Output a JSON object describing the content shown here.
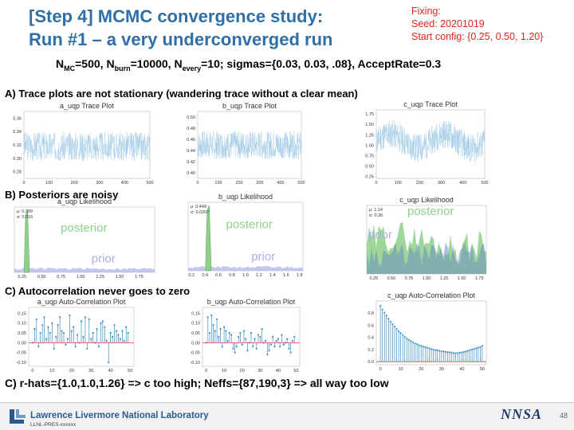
{
  "slide": {
    "title_line1": "[Step 4] MCMC convergence study:",
    "title_line2": "Run #1 – a very underconverged run",
    "fixing": [
      "Fixing:",
      "Seed: 20201019",
      "Start config: {0.25, 0.50, 1.20}"
    ],
    "params": {
      "nmc_sym": "N",
      "nmc_sub": "MC",
      "nmc_val": "=500, ",
      "nburn_sym": "N",
      "nburn_sub": "burn",
      "nburn_val": "=10000, ",
      "nevery_sym": "N",
      "nevery_sub": "every",
      "nevery_val": "=10; sigmas={0.03, 0.03, .08}, AcceptRate=0.3"
    },
    "section_a": "A) Trace plots are not stationary (wandering trace without a clear mean)",
    "section_b": "B) Posteriors are noisy",
    "section_c": "C) Autocorrelation never goes to zero",
    "conclusion": "C) r-hats={1.0,1.0,1.26} => c too high; Neffs={87,190,3} => all way too low",
    "footer": {
      "lab": "Lawrence Livermore National Laboratory",
      "code": "LLNL-PRES-xxxxxx",
      "page": "48",
      "agency": "NNSA"
    }
  },
  "colors": {
    "title": "#2e6fa8",
    "fixing": "#e8231c",
    "trace": "#a9cfe8",
    "posterior": "#8ed08a",
    "prior": "#aaaee8",
    "acf": "#3a8fc6",
    "zero_line": "#e0433c"
  },
  "chart_data": [
    {
      "type": "line",
      "title": "a_uqp Trace Plot",
      "xlim": [
        0,
        500
      ],
      "ylim": [
        0.27,
        0.37
      ],
      "xticks": [
        "0",
        "100",
        "200",
        "300",
        "400",
        "500"
      ],
      "yticks": [
        "0.28",
        "0.30",
        "0.32",
        "0.34",
        "0.36"
      ],
      "seed": 3,
      "base": 0.318,
      "amp": 0.022
    },
    {
      "type": "line",
      "title": "b_uqp Trace Plot",
      "xlim": [
        0,
        500
      ],
      "ylim": [
        0.39,
        0.51
      ],
      "xticks": [
        "0",
        "100",
        "200",
        "300",
        "400",
        "500"
      ],
      "yticks": [
        "0.40",
        "0.42",
        "0.44",
        "0.46",
        "0.48",
        "0.50"
      ],
      "seed": 7,
      "base": 0.45,
      "amp": 0.025
    },
    {
      "type": "line",
      "title": "c_uqp Trace Plot",
      "xlim": [
        0,
        500
      ],
      "ylim": [
        0.2,
        1.85
      ],
      "xticks": [
        "0",
        "100",
        "200",
        "300",
        "400",
        "500"
      ],
      "yticks": [
        "0.25",
        "0.50",
        "0.75",
        "1.00",
        "1.25",
        "1.50",
        "1.75"
      ],
      "seed": 11,
      "base": 1.1,
      "amp": 0.35
    },
    {
      "type": "area",
      "title": "a_uqp Likelihood",
      "mu": "μ: 0.309",
      "sigma": "σ: 0.016",
      "xticks": [
        "0.25",
        "0.50",
        "0.75",
        "1.00",
        "1.25",
        "1.50",
        "1.75"
      ],
      "xlim": [
        0.15,
        1.95
      ],
      "peak_x": 0.309,
      "peak_w": 0.016,
      "posterior_label": "posterior",
      "prior_label": "prior"
    },
    {
      "type": "area",
      "title": "b_uqp Likelihood",
      "mu": "μ: 0.449",
      "sigma": "σ: 0.0207",
      "xticks": [
        "0.2",
        "0.4",
        "0.6",
        "0.8",
        "1.0",
        "1.2",
        "1.4",
        "1.6",
        "1.8"
      ],
      "xlim": [
        0.15,
        1.85
      ],
      "peak_x": 0.449,
      "peak_w": 0.02,
      "posterior_label": "posterior",
      "prior_label": "prior"
    },
    {
      "type": "area",
      "title": "c_uqp Likelihood",
      "mu": "μ: 1.14",
      "sigma": "σ: 0.36",
      "xticks": [
        "0.25",
        "0.50",
        "0.75",
        "1.00",
        "1.25",
        "1.50",
        "1.75"
      ],
      "xlim": [
        0.15,
        1.85
      ],
      "posterior_label": "posterior",
      "prior_label": "prior"
    },
    {
      "type": "bar",
      "title": "a_uqp Auto-Correlation Plot",
      "xlim": [
        -2,
        52
      ],
      "ylim": [
        -0.12,
        0.18
      ],
      "xticks": [
        "0",
        "10",
        "20",
        "30",
        "40",
        "50"
      ],
      "yticks": [
        "-0.10",
        "-0.05",
        "0.00",
        "0.05",
        "0.10",
        "0.15"
      ],
      "values": [
        0.0,
        0.07,
        0.12,
        -0.02,
        0.05,
        0.09,
        0.13,
        0.02,
        0.08,
        0.05,
        0.1,
        -0.03,
        0.03,
        0.09,
        0.13,
        0.06,
        0.05,
        -0.01,
        0.02,
        0.14,
        0.06,
        0.08,
        -0.02,
        0.04,
        0.0,
        0.11,
        0.03,
        0.13,
        -0.03,
        0.12,
        0.02,
        0.05,
        0.0,
        0.07,
        -0.02,
        0.1,
        0.11,
        0.08,
        0.01,
        -0.1,
        0.05,
        0.03,
        0.09,
        0.06,
        0.04,
        0.02,
        0.06,
        0.01,
        0.08,
        0.05
      ]
    },
    {
      "type": "bar",
      "title": "b_uqp Auto-Correlation Plot",
      "xlim": [
        -2,
        52
      ],
      "ylim": [
        -0.12,
        0.18
      ],
      "xticks": [
        "0",
        "10",
        "20",
        "30",
        "40",
        "50"
      ],
      "yticks": [
        "-0.10",
        "-0.05",
        "0.00",
        "0.05",
        "0.10",
        "0.15"
      ],
      "values": [
        0.0,
        0.13,
        0.05,
        0.14,
        0.09,
        0.06,
        0.12,
        0.03,
        0.07,
        -0.02,
        0.08,
        0.06,
        0.01,
        0.05,
        0.04,
        -0.03,
        -0.05,
        -0.02,
        0.03,
        0.05,
        -0.01,
        0.06,
        0.02,
        -0.04,
        0.0,
        0.05,
        -0.02,
        0.02,
        -0.03,
        0.04,
        0.03,
        0.07,
        0.0,
        0.01,
        -0.06,
        -0.04,
        -0.01,
        0.03,
        -0.02,
        0.01,
        0.02,
        -0.02,
        0.04,
        -0.01,
        0.0,
        0.02,
        -0.03,
        -0.05,
        0.01,
        0.03
      ]
    },
    {
      "type": "bar",
      "title": "c_uqp Auto-Correlation Plot",
      "xlim": [
        -2,
        52
      ],
      "ylim": [
        -0.05,
        1.0
      ],
      "xticks": [
        "0",
        "10",
        "20",
        "30",
        "40",
        "50"
      ],
      "yticks": [
        "0.0",
        "0.2",
        "0.4",
        "0.6",
        "0.8"
      ],
      "values": [
        0.92,
        0.86,
        0.81,
        0.76,
        0.71,
        0.66,
        0.62,
        0.58,
        0.54,
        0.5,
        0.47,
        0.44,
        0.41,
        0.38,
        0.36,
        0.34,
        0.32,
        0.3,
        0.29,
        0.27,
        0.26,
        0.25,
        0.24,
        0.23,
        0.22,
        0.21,
        0.2,
        0.19,
        0.19,
        0.18,
        0.17,
        0.17,
        0.16,
        0.16,
        0.15,
        0.15,
        0.14,
        0.14,
        0.14,
        0.15,
        0.15,
        0.16,
        0.17,
        0.18,
        0.19,
        0.2,
        0.21,
        0.22,
        0.23,
        0.24,
        0.26
      ]
    }
  ]
}
